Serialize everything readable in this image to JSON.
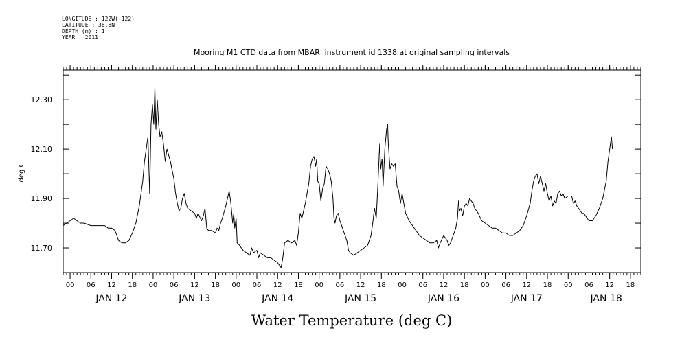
{
  "meta": {
    "longitude": "LONGITUDE : 122W(-122)",
    "latitude": "LATITUDE : 36.8N",
    "depth": "DEPTH (m) : 1",
    "year": "YEAR : 2011"
  },
  "chart_data": {
    "type": "line",
    "title": "Mooring M1 CTD data from MBARI instrument id 1338 at original sampling intervals",
    "xlabel": "Water Temperature (deg C)",
    "ylabel": "deg C",
    "x_unit": "hours from 2011-01-11 22:00 (hour 2 = JAN 12 00)",
    "xlim": [
      0,
      167
    ],
    "ylim": [
      11.6,
      12.42
    ],
    "yticks": [
      {
        "v": 11.7,
        "label": "11.70"
      },
      {
        "v": 11.9,
        "label": "11.90"
      },
      {
        "v": 12.1,
        "label": "12.10"
      },
      {
        "v": 12.3,
        "label": "12.30"
      }
    ],
    "hour_ticks": [
      {
        "h": 2,
        "label": "00"
      },
      {
        "h": 8,
        "label": "06"
      },
      {
        "h": 14,
        "label": "12"
      },
      {
        "h": 20,
        "label": "18"
      },
      {
        "h": 26,
        "label": "00"
      },
      {
        "h": 32,
        "label": "06"
      },
      {
        "h": 38,
        "label": "12"
      },
      {
        "h": 44,
        "label": "18"
      },
      {
        "h": 50,
        "label": "00"
      },
      {
        "h": 56,
        "label": "06"
      },
      {
        "h": 62,
        "label": "12"
      },
      {
        "h": 68,
        "label": "18"
      },
      {
        "h": 74,
        "label": "00"
      },
      {
        "h": 80,
        "label": "06"
      },
      {
        "h": 86,
        "label": "12"
      },
      {
        "h": 92,
        "label": "18"
      },
      {
        "h": 98,
        "label": "00"
      },
      {
        "h": 104,
        "label": "06"
      },
      {
        "h": 110,
        "label": "12"
      },
      {
        "h": 116,
        "label": "18"
      },
      {
        "h": 122,
        "label": "00"
      },
      {
        "h": 128,
        "label": "06"
      },
      {
        "h": 134,
        "label": "12"
      },
      {
        "h": 140,
        "label": "18"
      },
      {
        "h": 146,
        "label": "00"
      },
      {
        "h": 152,
        "label": "06"
      },
      {
        "h": 158,
        "label": "12"
      },
      {
        "h": 164,
        "label": "18"
      }
    ],
    "day_labels": [
      {
        "h": 14,
        "label": "JAN 12"
      },
      {
        "h": 38,
        "label": "JAN 13"
      },
      {
        "h": 62,
        "label": "JAN 14"
      },
      {
        "h": 86,
        "label": "JAN 15"
      },
      {
        "h": 110,
        "label": "JAN 16"
      },
      {
        "h": 134,
        "label": "JAN 17"
      },
      {
        "h": 157,
        "label": "JAN 18"
      }
    ],
    "series": [
      {
        "points": [
          [
            0,
            11.79
          ],
          [
            1,
            11.8
          ],
          [
            2,
            11.81
          ],
          [
            3,
            11.82
          ],
          [
            4,
            11.81
          ],
          [
            5,
            11.8
          ],
          [
            6,
            11.8
          ],
          [
            8,
            11.79
          ],
          [
            10,
            11.79
          ],
          [
            12,
            11.79
          ],
          [
            13,
            11.78
          ],
          [
            14,
            11.78
          ],
          [
            15,
            11.77
          ],
          [
            15.5,
            11.75
          ],
          [
            16,
            11.73
          ],
          [
            17,
            11.72
          ],
          [
            18,
            11.72
          ],
          [
            19,
            11.73
          ],
          [
            20,
            11.76
          ],
          [
            21,
            11.8
          ],
          [
            22,
            11.87
          ],
          [
            23,
            11.97
          ],
          [
            23.5,
            12.05
          ],
          [
            24,
            12.1
          ],
          [
            24.5,
            12.15
          ],
          [
            25,
            11.92
          ],
          [
            25.4,
            12.2
          ],
          [
            25.8,
            12.28
          ],
          [
            26.2,
            12.2
          ],
          [
            26.5,
            12.35
          ],
          [
            26.8,
            12.18
          ],
          [
            27.2,
            12.3
          ],
          [
            27.6,
            12.2
          ],
          [
            28,
            12.15
          ],
          [
            28.5,
            12.17
          ],
          [
            29,
            12.12
          ],
          [
            29.5,
            12.05
          ],
          [
            30,
            12.1
          ],
          [
            31,
            12.05
          ],
          [
            32,
            11.98
          ],
          [
            32.5,
            11.92
          ],
          [
            33,
            11.88
          ],
          [
            33.5,
            11.85
          ],
          [
            34,
            11.86
          ],
          [
            34.5,
            11.9
          ],
          [
            35,
            11.92
          ],
          [
            35.5,
            11.88
          ],
          [
            36,
            11.86
          ],
          [
            37,
            11.85
          ],
          [
            38,
            11.84
          ],
          [
            38.5,
            11.82
          ],
          [
            39,
            11.84
          ],
          [
            40,
            11.81
          ],
          [
            40.5,
            11.83
          ],
          [
            41,
            11.86
          ],
          [
            41.5,
            11.78
          ],
          [
            42,
            11.77
          ],
          [
            43,
            11.77
          ],
          [
            44,
            11.76
          ],
          [
            44.5,
            11.78
          ],
          [
            45,
            11.77
          ],
          [
            45.5,
            11.8
          ],
          [
            46,
            11.82
          ],
          [
            47,
            11.87
          ],
          [
            47.5,
            11.9
          ],
          [
            48,
            11.93
          ],
          [
            48.5,
            11.88
          ],
          [
            49,
            11.8
          ],
          [
            49.3,
            11.84
          ],
          [
            49.6,
            11.78
          ],
          [
            50,
            11.82
          ],
          [
            50.3,
            11.72
          ],
          [
            51,
            11.71
          ],
          [
            52,
            11.69
          ],
          [
            53,
            11.68
          ],
          [
            54,
            11.67
          ],
          [
            54.5,
            11.7
          ],
          [
            55,
            11.68
          ],
          [
            56,
            11.69
          ],
          [
            56.5,
            11.66
          ],
          [
            57,
            11.68
          ],
          [
            58,
            11.67
          ],
          [
            59,
            11.66
          ],
          [
            60,
            11.66
          ],
          [
            61,
            11.65
          ],
          [
            62,
            11.64
          ],
          [
            62.5,
            11.63
          ],
          [
            63,
            11.62
          ],
          [
            63.5,
            11.66
          ],
          [
            64,
            11.72
          ],
          [
            65,
            11.73
          ],
          [
            66,
            11.72
          ],
          [
            67,
            11.73
          ],
          [
            67.5,
            11.71
          ],
          [
            68,
            11.76
          ],
          [
            68.5,
            11.84
          ],
          [
            69,
            11.82
          ],
          [
            70,
            11.88
          ],
          [
            70.5,
            11.92
          ],
          [
            71,
            11.96
          ],
          [
            71.5,
            12.03
          ],
          [
            72,
            12.06
          ],
          [
            72.5,
            12.07
          ],
          [
            73,
            12.03
          ],
          [
            73.3,
            12.06
          ],
          [
            73.6,
            11.97
          ],
          [
            74,
            11.96
          ],
          [
            74.5,
            11.89
          ],
          [
            75,
            11.94
          ],
          [
            75.5,
            11.96
          ],
          [
            76,
            12.03
          ],
          [
            76.5,
            12.02
          ],
          [
            77,
            12.0
          ],
          [
            77.5,
            11.97
          ],
          [
            78,
            11.9
          ],
          [
            78.3,
            11.82
          ],
          [
            78.6,
            11.8
          ],
          [
            79,
            11.83
          ],
          [
            79.5,
            11.84
          ],
          [
            80,
            11.81
          ],
          [
            80.5,
            11.79
          ],
          [
            81,
            11.77
          ],
          [
            82,
            11.73
          ],
          [
            82.5,
            11.69
          ],
          [
            83,
            11.68
          ],
          [
            84,
            11.67
          ],
          [
            85,
            11.68
          ],
          [
            86,
            11.69
          ],
          [
            87,
            11.7
          ],
          [
            88,
            11.71
          ],
          [
            89,
            11.75
          ],
          [
            89.5,
            11.8
          ],
          [
            90,
            11.86
          ],
          [
            90.5,
            11.82
          ],
          [
            91,
            11.96
          ],
          [
            91.5,
            12.12
          ],
          [
            91.8,
            12.02
          ],
          [
            92.2,
            12.06
          ],
          [
            92.5,
            11.95
          ],
          [
            93,
            12.1
          ],
          [
            93.5,
            12.18
          ],
          [
            93.8,
            12.2
          ],
          [
            94,
            12.12
          ],
          [
            94.5,
            12.02
          ],
          [
            95,
            12.04
          ],
          [
            95.5,
            12.03
          ],
          [
            96,
            12.04
          ],
          [
            96.5,
            11.95
          ],
          [
            97,
            11.93
          ],
          [
            97.5,
            11.88
          ],
          [
            98,
            11.92
          ],
          [
            98.5,
            11.88
          ],
          [
            99,
            11.84
          ],
          [
            100,
            11.81
          ],
          [
            101,
            11.79
          ],
          [
            102,
            11.77
          ],
          [
            103,
            11.75
          ],
          [
            104,
            11.74
          ],
          [
            105,
            11.73
          ],
          [
            106,
            11.72
          ],
          [
            107,
            11.72
          ],
          [
            108,
            11.73
          ],
          [
            108.5,
            11.7
          ],
          [
            109,
            11.72
          ],
          [
            110,
            11.75
          ],
          [
            111,
            11.73
          ],
          [
            111.5,
            11.71
          ],
          [
            112,
            11.72
          ],
          [
            112.5,
            11.74
          ],
          [
            113,
            11.76
          ],
          [
            113.5,
            11.78
          ],
          [
            114,
            11.82
          ],
          [
            114.3,
            11.89
          ],
          [
            114.6,
            11.85
          ],
          [
            115,
            11.86
          ],
          [
            115.5,
            11.83
          ],
          [
            116,
            11.87
          ],
          [
            116.5,
            11.88
          ],
          [
            117,
            11.87
          ],
          [
            117.5,
            11.9
          ],
          [
            118,
            11.89
          ],
          [
            118.5,
            11.88
          ],
          [
            119,
            11.86
          ],
          [
            120,
            11.84
          ],
          [
            121,
            11.81
          ],
          [
            122,
            11.8
          ],
          [
            123,
            11.79
          ],
          [
            124,
            11.78
          ],
          [
            125,
            11.78
          ],
          [
            126,
            11.77
          ],
          [
            127,
            11.76
          ],
          [
            128,
            11.76
          ],
          [
            129,
            11.75
          ],
          [
            130,
            11.75
          ],
          [
            131,
            11.76
          ],
          [
            132,
            11.77
          ],
          [
            133,
            11.79
          ],
          [
            134,
            11.83
          ],
          [
            135,
            11.88
          ],
          [
            135.5,
            11.93
          ],
          [
            136,
            11.97
          ],
          [
            136.5,
            11.99
          ],
          [
            137,
            12.0
          ],
          [
            137.5,
            11.96
          ],
          [
            138,
            11.99
          ],
          [
            138.5,
            11.96
          ],
          [
            139,
            11.93
          ],
          [
            139.5,
            11.96
          ],
          [
            140,
            11.92
          ],
          [
            140.5,
            11.89
          ],
          [
            141,
            11.91
          ],
          [
            141.5,
            11.87
          ],
          [
            142,
            11.89
          ],
          [
            142.5,
            11.88
          ],
          [
            143,
            11.92
          ],
          [
            143.5,
            11.93
          ],
          [
            144,
            11.91
          ],
          [
            144.5,
            11.92
          ],
          [
            145,
            11.9
          ],
          [
            146,
            11.91
          ],
          [
            147,
            11.91
          ],
          [
            147.5,
            11.88
          ],
          [
            148,
            11.89
          ],
          [
            148.5,
            11.87
          ],
          [
            149,
            11.86
          ],
          [
            149.5,
            11.85
          ],
          [
            150,
            11.84
          ],
          [
            150.5,
            11.84
          ],
          [
            151,
            11.83
          ],
          [
            151.5,
            11.82
          ],
          [
            152,
            11.81
          ],
          [
            153,
            11.81
          ],
          [
            154,
            11.83
          ],
          [
            155,
            11.86
          ],
          [
            156,
            11.9
          ],
          [
            157,
            11.97
          ],
          [
            157.5,
            12.05
          ],
          [
            158,
            12.1
          ],
          [
            158.5,
            12.15
          ],
          [
            158.8,
            12.1
          ]
        ]
      }
    ]
  }
}
